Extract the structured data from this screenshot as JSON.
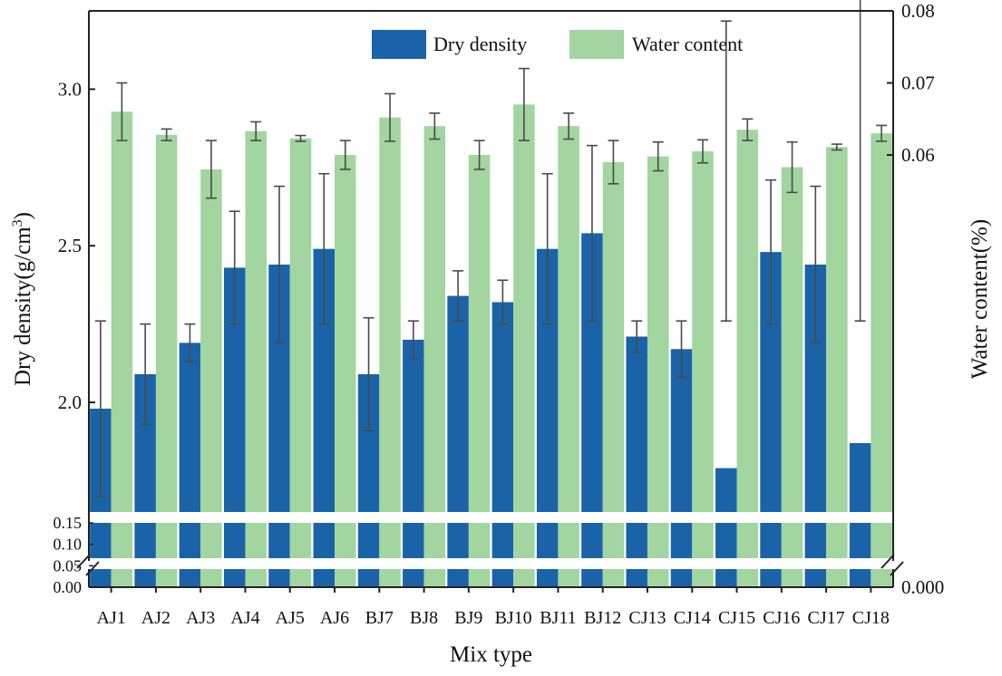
{
  "chart_data": {
    "type": "bar",
    "title": "",
    "xlabel": "Mix type",
    "ylabel_left": "Dry density(g/cm",
    "ylabel_left_sup": "3",
    "ylabel_left_close": ")",
    "ylabel_right": "Water content(%)",
    "categories": [
      "AJ1",
      "AJ2",
      "AJ3",
      "AJ4",
      "AJ5",
      "AJ6",
      "BJ7",
      "BJ8",
      "BJ9",
      "BJ10",
      "BJ11",
      "BJ12",
      "CJ13",
      "CJ14",
      "CJ15",
      "CJ16",
      "CJ17",
      "CJ18"
    ],
    "left_axis": {
      "upper_range": [
        1.65,
        3.25
      ],
      "upper_ticks": [
        2.0,
        2.5,
        3.0
      ],
      "upper_tick_labels": [
        "2.0",
        "2.5",
        "3.0"
      ],
      "lower_range": [
        0,
        0.15
      ],
      "lower_ticks": [
        0.0,
        0.05,
        0.1,
        0.15
      ],
      "lower_tick_labels": [
        "0.00",
        "0.05",
        "0.10",
        "0.15"
      ]
    },
    "right_axis": {
      "range": [
        0,
        0.08
      ],
      "ticks": [
        0.0,
        0.06,
        0.07,
        0.08
      ],
      "tick_labels": [
        "0.000",
        "0.06",
        "0.07",
        "0.08"
      ]
    },
    "series": [
      {
        "name": "Dry density",
        "axis": "left",
        "color": "#1a63a8",
        "values": [
          1.98,
          2.09,
          2.19,
          2.43,
          2.44,
          2.49,
          2.09,
          2.2,
          2.34,
          2.32,
          2.49,
          2.54,
          2.21,
          2.17,
          1.79,
          2.48,
          2.44,
          1.87
        ],
        "errors": [
          0.28,
          0.16,
          0.06,
          0.18,
          0.25,
          0.24,
          0.18,
          0.06,
          0.08,
          0.07,
          0.24,
          0.28,
          0.05,
          0.09,
          0.47,
          0.23,
          0.25,
          0.39
        ]
      },
      {
        "name": "Water content",
        "axis": "right",
        "color": "#a2d5a0",
        "values": [
          0.066,
          0.0628,
          0.058,
          0.0633,
          0.0623,
          0.06,
          0.0652,
          0.064,
          0.06,
          0.067,
          0.064,
          0.059,
          0.0598,
          0.0605,
          0.0635,
          0.0583,
          0.0611,
          0.063
        ],
        "errors": [
          0.004,
          0.0008,
          0.004,
          0.0013,
          0.0004,
          0.002,
          0.0033,
          0.0018,
          0.002,
          0.005,
          0.0018,
          0.003,
          0.002,
          0.0016,
          0.0015,
          0.0035,
          0.0004,
          0.0011
        ]
      }
    ],
    "legend_position": "top-right",
    "grid": false
  }
}
